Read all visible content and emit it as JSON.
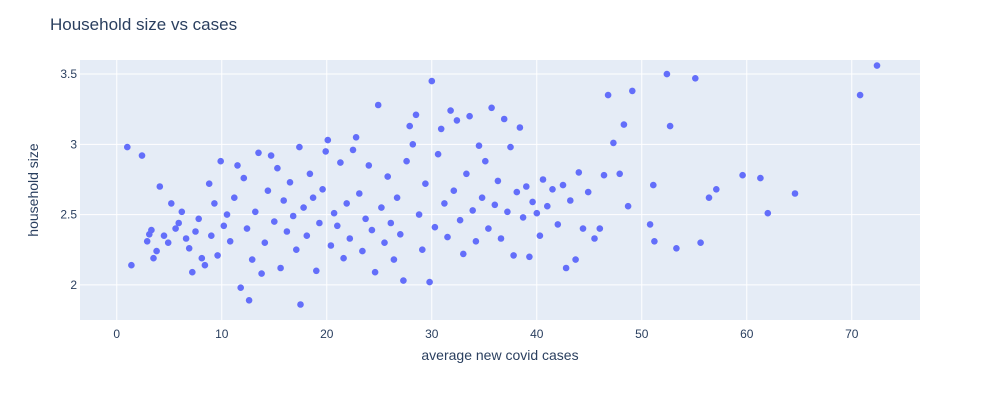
{
  "chart_data": {
    "type": "scatter",
    "title": "Household size vs cases",
    "xlabel": "average new covid cases",
    "ylabel": "household size",
    "xlim": [
      -3.5,
      76.5
    ],
    "ylim": [
      1.75,
      3.6
    ],
    "xticks": [
      0,
      10,
      20,
      30,
      40,
      50,
      60,
      70
    ],
    "yticks": [
      2,
      2.5,
      3,
      3.5
    ],
    "ytick_labels": [
      "2",
      "2.5",
      "3",
      "3.5"
    ],
    "grid": true,
    "marker_color": "#636efa",
    "plot_background": "#e5ecf6",
    "series": [
      {
        "points": [
          [
            1.0,
            2.98
          ],
          [
            1.4,
            2.14
          ],
          [
            2.4,
            2.92
          ],
          [
            2.9,
            2.31
          ],
          [
            3.1,
            2.36
          ],
          [
            3.3,
            2.39
          ],
          [
            3.5,
            2.19
          ],
          [
            3.8,
            2.24
          ],
          [
            4.1,
            2.7
          ],
          [
            4.5,
            2.35
          ],
          [
            4.9,
            2.3
          ],
          [
            5.2,
            2.58
          ],
          [
            5.6,
            2.4
          ],
          [
            5.9,
            2.44
          ],
          [
            6.2,
            2.52
          ],
          [
            6.6,
            2.33
          ],
          [
            6.9,
            2.26
          ],
          [
            7.2,
            2.09
          ],
          [
            7.5,
            2.38
          ],
          [
            7.8,
            2.47
          ],
          [
            8.1,
            2.19
          ],
          [
            8.4,
            2.14
          ],
          [
            8.8,
            2.72
          ],
          [
            9.0,
            2.35
          ],
          [
            9.3,
            2.58
          ],
          [
            9.6,
            2.21
          ],
          [
            9.9,
            2.88
          ],
          [
            10.2,
            2.42
          ],
          [
            10.5,
            2.5
          ],
          [
            10.8,
            2.31
          ],
          [
            11.2,
            2.62
          ],
          [
            11.5,
            2.85
          ],
          [
            11.8,
            1.98
          ],
          [
            12.1,
            2.76
          ],
          [
            12.4,
            2.4
          ],
          [
            12.6,
            1.89
          ],
          [
            12.9,
            2.18
          ],
          [
            13.2,
            2.52
          ],
          [
            13.5,
            2.94
          ],
          [
            13.8,
            2.08
          ],
          [
            14.1,
            2.3
          ],
          [
            14.4,
            2.67
          ],
          [
            14.7,
            2.92
          ],
          [
            15.0,
            2.45
          ],
          [
            15.3,
            2.83
          ],
          [
            15.6,
            2.12
          ],
          [
            15.9,
            2.6
          ],
          [
            16.2,
            2.38
          ],
          [
            16.5,
            2.73
          ],
          [
            16.8,
            2.49
          ],
          [
            17.1,
            2.25
          ],
          [
            17.4,
            2.98
          ],
          [
            17.5,
            1.86
          ],
          [
            17.8,
            2.55
          ],
          [
            18.1,
            2.35
          ],
          [
            18.4,
            2.79
          ],
          [
            18.7,
            2.62
          ],
          [
            19.0,
            2.1
          ],
          [
            19.3,
            2.44
          ],
          [
            19.6,
            2.68
          ],
          [
            19.9,
            2.95
          ],
          [
            20.1,
            3.03
          ],
          [
            20.4,
            2.28
          ],
          [
            20.7,
            2.51
          ],
          [
            21.0,
            2.42
          ],
          [
            21.3,
            2.87
          ],
          [
            21.6,
            2.19
          ],
          [
            21.9,
            2.58
          ],
          [
            22.2,
            2.33
          ],
          [
            22.5,
            2.96
          ],
          [
            22.8,
            3.05
          ],
          [
            23.1,
            2.65
          ],
          [
            23.4,
            2.24
          ],
          [
            23.7,
            2.47
          ],
          [
            24.0,
            2.85
          ],
          [
            24.3,
            2.39
          ],
          [
            24.6,
            2.09
          ],
          [
            24.9,
            3.28
          ],
          [
            25.2,
            2.55
          ],
          [
            25.5,
            2.3
          ],
          [
            25.8,
            2.77
          ],
          [
            26.1,
            2.44
          ],
          [
            26.4,
            2.18
          ],
          [
            26.7,
            2.62
          ],
          [
            27.0,
            2.36
          ],
          [
            27.3,
            2.03
          ],
          [
            27.6,
            2.88
          ],
          [
            27.9,
            3.13
          ],
          [
            28.2,
            3.0
          ],
          [
            28.5,
            3.21
          ],
          [
            28.8,
            2.5
          ],
          [
            29.1,
            2.25
          ],
          [
            29.4,
            2.72
          ],
          [
            29.8,
            2.02
          ],
          [
            30.0,
            3.45
          ],
          [
            30.3,
            2.41
          ],
          [
            30.6,
            2.93
          ],
          [
            30.9,
            3.11
          ],
          [
            31.2,
            2.58
          ],
          [
            31.5,
            2.34
          ],
          [
            31.8,
            3.24
          ],
          [
            32.1,
            2.67
          ],
          [
            32.4,
            3.17
          ],
          [
            32.7,
            2.46
          ],
          [
            33.0,
            2.22
          ],
          [
            33.3,
            2.79
          ],
          [
            33.6,
            3.2
          ],
          [
            33.9,
            2.53
          ],
          [
            34.2,
            2.31
          ],
          [
            34.5,
            2.99
          ],
          [
            34.8,
            2.62
          ],
          [
            35.1,
            2.88
          ],
          [
            35.4,
            2.4
          ],
          [
            35.7,
            3.26
          ],
          [
            36.0,
            2.57
          ],
          [
            36.3,
            2.74
          ],
          [
            36.6,
            2.33
          ],
          [
            36.9,
            3.18
          ],
          [
            37.2,
            2.52
          ],
          [
            37.5,
            2.98
          ],
          [
            37.8,
            2.21
          ],
          [
            38.1,
            2.66
          ],
          [
            38.4,
            3.12
          ],
          [
            38.7,
            2.48
          ],
          [
            39.0,
            2.7
          ],
          [
            39.3,
            2.2
          ],
          [
            39.6,
            2.59
          ],
          [
            40.0,
            2.51
          ],
          [
            40.3,
            2.35
          ],
          [
            40.6,
            2.75
          ],
          [
            41.0,
            2.56
          ],
          [
            41.5,
            2.68
          ],
          [
            42.0,
            2.43
          ],
          [
            42.5,
            2.71
          ],
          [
            42.8,
            2.12
          ],
          [
            43.2,
            2.6
          ],
          [
            43.7,
            2.18
          ],
          [
            44.0,
            2.8
          ],
          [
            44.4,
            2.4
          ],
          [
            44.9,
            2.66
          ],
          [
            45.5,
            2.33
          ],
          [
            46.0,
            2.4
          ],
          [
            46.4,
            2.78
          ],
          [
            46.8,
            3.35
          ],
          [
            47.3,
            3.01
          ],
          [
            47.9,
            2.79
          ],
          [
            48.3,
            3.14
          ],
          [
            48.7,
            2.56
          ],
          [
            49.1,
            3.38
          ],
          [
            50.8,
            2.43
          ],
          [
            51.1,
            2.71
          ],
          [
            51.2,
            2.31
          ],
          [
            52.4,
            3.5
          ],
          [
            52.7,
            3.13
          ],
          [
            53.3,
            2.26
          ],
          [
            55.1,
            3.47
          ],
          [
            55.6,
            2.3
          ],
          [
            56.4,
            2.62
          ],
          [
            57.1,
            2.68
          ],
          [
            59.6,
            2.78
          ],
          [
            61.3,
            2.76
          ],
          [
            62.0,
            2.51
          ],
          [
            64.6,
            2.65
          ],
          [
            70.8,
            3.35
          ],
          [
            72.4,
            3.56
          ]
        ]
      }
    ]
  }
}
